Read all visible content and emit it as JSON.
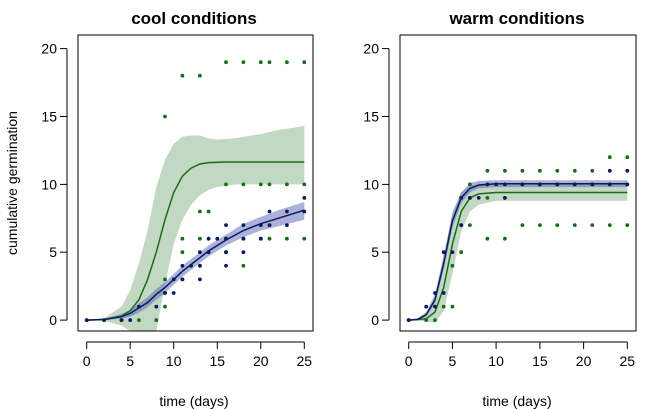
{
  "colors": {
    "green": "#1a6b1a",
    "green_band": "#8fb88f",
    "blue": "#0b1a5c",
    "blue_band": "#5a64b8",
    "frame": "#000000"
  },
  "ylabel": "cumulative germination",
  "chart_data": [
    {
      "type": "scatter",
      "title": "cool conditions",
      "xlabel": "time (days)",
      "ylabel": "cumulative germination",
      "xlim": [
        -1,
        26
      ],
      "ylim": [
        -0.8,
        21
      ],
      "xticks": [
        0,
        5,
        10,
        15,
        20,
        25
      ],
      "yticks": [
        0,
        5,
        10,
        15,
        20
      ],
      "grid": false,
      "series": [
        {
          "color": "green",
          "points": [
            [
              0,
              0
            ],
            [
              2,
              0
            ],
            [
              4,
              0
            ],
            [
              6,
              0
            ],
            [
              8,
              0
            ],
            [
              9,
              1
            ],
            [
              9,
              2
            ],
            [
              9,
              3
            ],
            [
              9,
              15
            ],
            [
              11,
              3
            ],
            [
              11,
              5
            ],
            [
              11,
              6
            ],
            [
              11,
              18
            ],
            [
              13,
              4
            ],
            [
              13,
              6
            ],
            [
              13,
              8
            ],
            [
              13,
              18
            ],
            [
              14,
              8
            ],
            [
              16,
              5
            ],
            [
              16,
              6
            ],
            [
              16,
              10
            ],
            [
              16,
              19
            ],
            [
              18,
              4
            ],
            [
              18,
              6
            ],
            [
              18,
              10
            ],
            [
              18,
              19
            ],
            [
              20,
              6
            ],
            [
              20,
              10
            ],
            [
              20,
              19
            ],
            [
              21,
              6
            ],
            [
              21,
              10
            ],
            [
              21,
              19
            ],
            [
              23,
              6
            ],
            [
              23,
              10
            ],
            [
              23,
              19
            ],
            [
              25,
              6
            ],
            [
              25,
              10
            ],
            [
              25,
              19
            ]
          ],
          "fit": [
            [
              0,
              0
            ],
            [
              2,
              0.05
            ],
            [
              4,
              0.3
            ],
            [
              5,
              0.7
            ],
            [
              6,
              1.5
            ],
            [
              7,
              3
            ],
            [
              8,
              5
            ],
            [
              9,
              7.4
            ],
            [
              10,
              9.4
            ],
            [
              11,
              10.6
            ],
            [
              12,
              11.2
            ],
            [
              13,
              11.5
            ],
            [
              14,
              11.6
            ],
            [
              16,
              11.65
            ],
            [
              20,
              11.65
            ],
            [
              25,
              11.65
            ]
          ],
          "band": [
            [
              0,
              0,
              0
            ],
            [
              2,
              -0.05,
              0.15
            ],
            [
              4,
              -0.4,
              1.0
            ],
            [
              5,
              -0.8,
              2.2
            ],
            [
              6,
              -0.8,
              4.2
            ],
            [
              7,
              -0.8,
              6.6
            ],
            [
              8,
              -0.8,
              9.8
            ],
            [
              9,
              2.6,
              11.8
            ],
            [
              10,
              5.6,
              13.0
            ],
            [
              11,
              7.4,
              13.5
            ],
            [
              12,
              8.5,
              13.6
            ],
            [
              13,
              9.2,
              13.6
            ],
            [
              14,
              9.6,
              13.4
            ],
            [
              15,
              9.8,
              13.3
            ],
            [
              17,
              10.0,
              13.4
            ],
            [
              20,
              10.0,
              13.7
            ],
            [
              22,
              10.0,
              14.0
            ],
            [
              25,
              10.0,
              14.3
            ]
          ]
        },
        {
          "color": "blue",
          "points": [
            [
              0,
              0
            ],
            [
              2,
              0
            ],
            [
              4,
              0
            ],
            [
              5,
              0
            ],
            [
              6,
              1
            ],
            [
              8,
              1
            ],
            [
              9,
              2
            ],
            [
              10,
              2
            ],
            [
              10,
              3
            ],
            [
              11,
              3
            ],
            [
              11,
              4
            ],
            [
              12,
              4
            ],
            [
              13,
              3
            ],
            [
              13,
              4
            ],
            [
              13,
              5
            ],
            [
              14,
              5
            ],
            [
              14,
              6
            ],
            [
              15,
              6
            ],
            [
              16,
              4
            ],
            [
              16,
              5
            ],
            [
              16,
              6
            ],
            [
              16,
              7
            ],
            [
              18,
              5
            ],
            [
              18,
              6
            ],
            [
              18,
              7
            ],
            [
              20,
              6
            ],
            [
              20,
              7
            ],
            [
              21,
              7
            ],
            [
              21,
              8
            ],
            [
              23,
              7
            ],
            [
              23,
              8
            ],
            [
              25,
              8
            ],
            [
              25,
              9
            ]
          ],
          "fit": [
            [
              0,
              0
            ],
            [
              2,
              0.05
            ],
            [
              4,
              0.25
            ],
            [
              5,
              0.5
            ],
            [
              6,
              0.9
            ],
            [
              7,
              1.3
            ],
            [
              8,
              1.9
            ],
            [
              9,
              2.4
            ],
            [
              10,
              3.0
            ],
            [
              11,
              3.6
            ],
            [
              12,
              4.1
            ],
            [
              13,
              4.6
            ],
            [
              14,
              5.1
            ],
            [
              15,
              5.5
            ],
            [
              16,
              5.9
            ],
            [
              18,
              6.6
            ],
            [
              20,
              7.1
            ],
            [
              22,
              7.5
            ],
            [
              25,
              8.1
            ]
          ],
          "band": [
            [
              0,
              0,
              0
            ],
            [
              2,
              0,
              0.1
            ],
            [
              4,
              0.1,
              0.45
            ],
            [
              5,
              0.25,
              0.75
            ],
            [
              6,
              0.55,
              1.25
            ],
            [
              7,
              0.95,
              1.7
            ],
            [
              8,
              1.5,
              2.3
            ],
            [
              9,
              2.0,
              2.8
            ],
            [
              10,
              2.6,
              3.4
            ],
            [
              11,
              3.2,
              4.0
            ],
            [
              12,
              3.7,
              4.5
            ],
            [
              13,
              4.2,
              5.0
            ],
            [
              14,
              4.7,
              5.5
            ],
            [
              15,
              5.1,
              5.9
            ],
            [
              16,
              5.5,
              6.3
            ],
            [
              18,
              6.1,
              7.1
            ],
            [
              20,
              6.6,
              7.6
            ],
            [
              22,
              6.9,
              8.1
            ],
            [
              25,
              7.4,
              8.7
            ]
          ]
        }
      ]
    },
    {
      "type": "scatter",
      "title": "warm conditions",
      "xlabel": "time (days)",
      "ylabel": "",
      "xlim": [
        -1,
        26
      ],
      "ylim": [
        -0.8,
        21
      ],
      "xticks": [
        0,
        5,
        10,
        15,
        20,
        25
      ],
      "yticks": [
        0,
        5,
        10,
        15,
        20
      ],
      "grid": false,
      "series": [
        {
          "color": "green",
          "points": [
            [
              0,
              0
            ],
            [
              2,
              0
            ],
            [
              3,
              0
            ],
            [
              4,
              1
            ],
            [
              5,
              1
            ],
            [
              5,
              4
            ],
            [
              6,
              5
            ],
            [
              6,
              7
            ],
            [
              7,
              7
            ],
            [
              7,
              9
            ],
            [
              7,
              10
            ],
            [
              9,
              6
            ],
            [
              9,
              9
            ],
            [
              9,
              11
            ],
            [
              11,
              6
            ],
            [
              11,
              9
            ],
            [
              11,
              11
            ],
            [
              13,
              7
            ],
            [
              13,
              10
            ],
            [
              13,
              11
            ],
            [
              15,
              7
            ],
            [
              15,
              10
            ],
            [
              15,
              11
            ],
            [
              17,
              7
            ],
            [
              17,
              10
            ],
            [
              17,
              11
            ],
            [
              19,
              7
            ],
            [
              19,
              10
            ],
            [
              19,
              11
            ],
            [
              21,
              7
            ],
            [
              21,
              10
            ],
            [
              21,
              11
            ],
            [
              23,
              7
            ],
            [
              23,
              10
            ],
            [
              23,
              12
            ],
            [
              25,
              7
            ],
            [
              25,
              10
            ],
            [
              25,
              12
            ]
          ],
          "fit": [
            [
              0,
              0
            ],
            [
              2,
              0.1
            ],
            [
              3,
              0.6
            ],
            [
              4,
              2.4
            ],
            [
              5,
              5.6
            ],
            [
              6,
              8.0
            ],
            [
              7,
              9.0
            ],
            [
              8,
              9.3
            ],
            [
              10,
              9.4
            ],
            [
              25,
              9.4
            ]
          ],
          "band": [
            [
              0,
              0,
              0
            ],
            [
              2,
              -0.1,
              0.3
            ],
            [
              3,
              -0.2,
              1.4
            ],
            [
              4,
              0.7,
              4.5
            ],
            [
              5,
              3.4,
              8.0
            ],
            [
              6,
              6.5,
              9.4
            ],
            [
              7,
              8.0,
              9.9
            ],
            [
              8,
              8.5,
              10.0
            ],
            [
              10,
              8.8,
              10.0
            ],
            [
              15,
              8.8,
              10.0
            ],
            [
              20,
              8.8,
              10.0
            ],
            [
              25,
              8.8,
              10.0
            ]
          ]
        },
        {
          "color": "blue",
          "points": [
            [
              0,
              0
            ],
            [
              2,
              1
            ],
            [
              3,
              1
            ],
            [
              3,
              2
            ],
            [
              4,
              2
            ],
            [
              4,
              5
            ],
            [
              5,
              5
            ],
            [
              6,
              7
            ],
            [
              6,
              9
            ],
            [
              7,
              9
            ],
            [
              8,
              9
            ],
            [
              9,
              10
            ],
            [
              10,
              10
            ],
            [
              11,
              9
            ],
            [
              11,
              10
            ],
            [
              13,
              10
            ],
            [
              15,
              10
            ],
            [
              17,
              10
            ],
            [
              19,
              10
            ],
            [
              21,
              10
            ],
            [
              23,
              10
            ],
            [
              23,
              11
            ],
            [
              25,
              10
            ],
            [
              25,
              11
            ]
          ],
          "fit": [
            [
              0,
              0
            ],
            [
              1,
              0.05
            ],
            [
              2,
              0.4
            ],
            [
              3,
              1.5
            ],
            [
              4,
              4.2
            ],
            [
              5,
              7.3
            ],
            [
              6,
              9.0
            ],
            [
              7,
              9.7
            ],
            [
              8,
              9.95
            ],
            [
              10,
              10.05
            ],
            [
              25,
              10.05
            ]
          ],
          "band": [
            [
              0,
              0,
              0
            ],
            [
              1,
              0,
              0.12
            ],
            [
              2,
              0.25,
              0.6
            ],
            [
              3,
              1.2,
              1.9
            ],
            [
              4,
              3.7,
              4.8
            ],
            [
              5,
              6.8,
              7.8
            ],
            [
              6,
              8.6,
              9.4
            ],
            [
              7,
              9.4,
              10.1
            ],
            [
              8,
              9.7,
              10.25
            ],
            [
              10,
              9.8,
              10.3
            ],
            [
              15,
              9.8,
              10.3
            ],
            [
              20,
              9.8,
              10.3
            ],
            [
              25,
              9.8,
              10.3
            ]
          ]
        }
      ]
    }
  ]
}
